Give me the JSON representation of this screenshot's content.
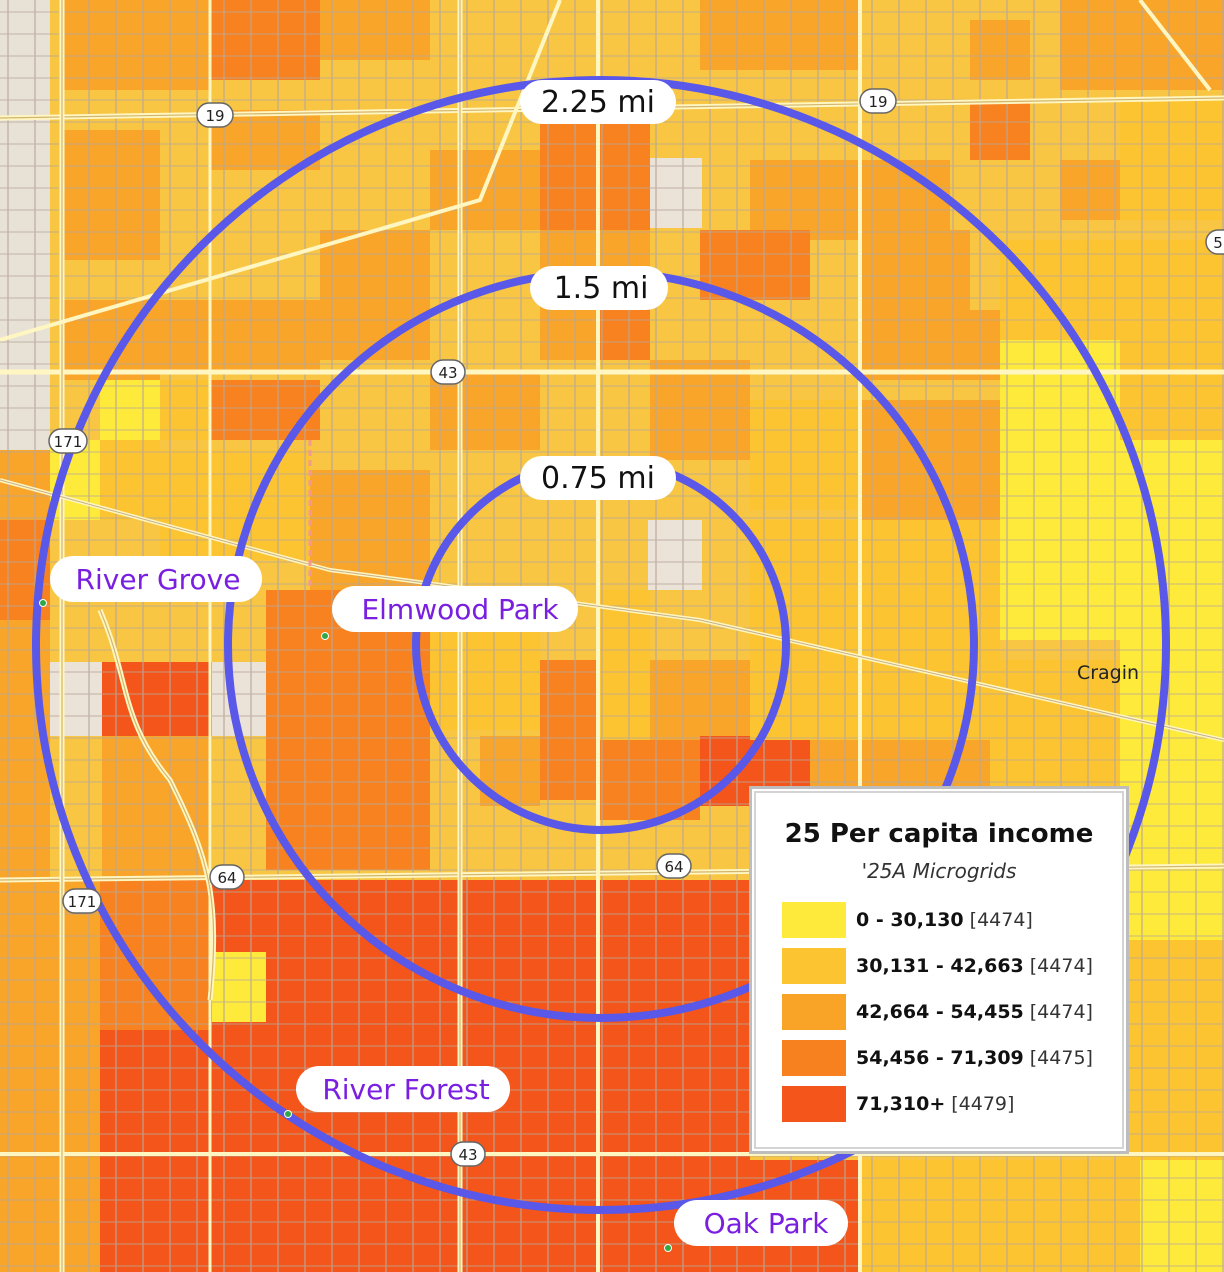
{
  "legend": {
    "title": "25 Per capita income",
    "subtitle": "'25A Microgrids",
    "classes": [
      {
        "range": "0 - 30,130",
        "count": "[4474]",
        "color": "#fdea3a"
      },
      {
        "range": "30,131 - 42,663",
        "count": "[4474]",
        "color": "#fcc430"
      },
      {
        "range": "42,664 - 54,455",
        "count": "[4474]",
        "color": "#f9a427"
      },
      {
        "range": "54,456 - 71,309",
        "count": "[4475]",
        "color": "#f7811f"
      },
      {
        "range": "71,310+",
        "count": "[4479]",
        "color": "#f4551a"
      }
    ]
  },
  "rings": {
    "inner": "0.75 mi",
    "middle": "1.5 mi",
    "outer": "2.25 mi",
    "color": "#5a58e8"
  },
  "places": {
    "river_grove": "River Grove",
    "elmwood_park": "Elmwood Park",
    "river_forest": "River Forest",
    "oak_park": "Oak Park",
    "cragin": "Cragin"
  },
  "routes": {
    "r19_a": "19",
    "r19_b": "19",
    "r43_a": "43",
    "r43_b": "43",
    "r171_a": "171",
    "r171_b": "171",
    "r64_a": "64",
    "r64_b": "64",
    "r5": "5"
  }
}
